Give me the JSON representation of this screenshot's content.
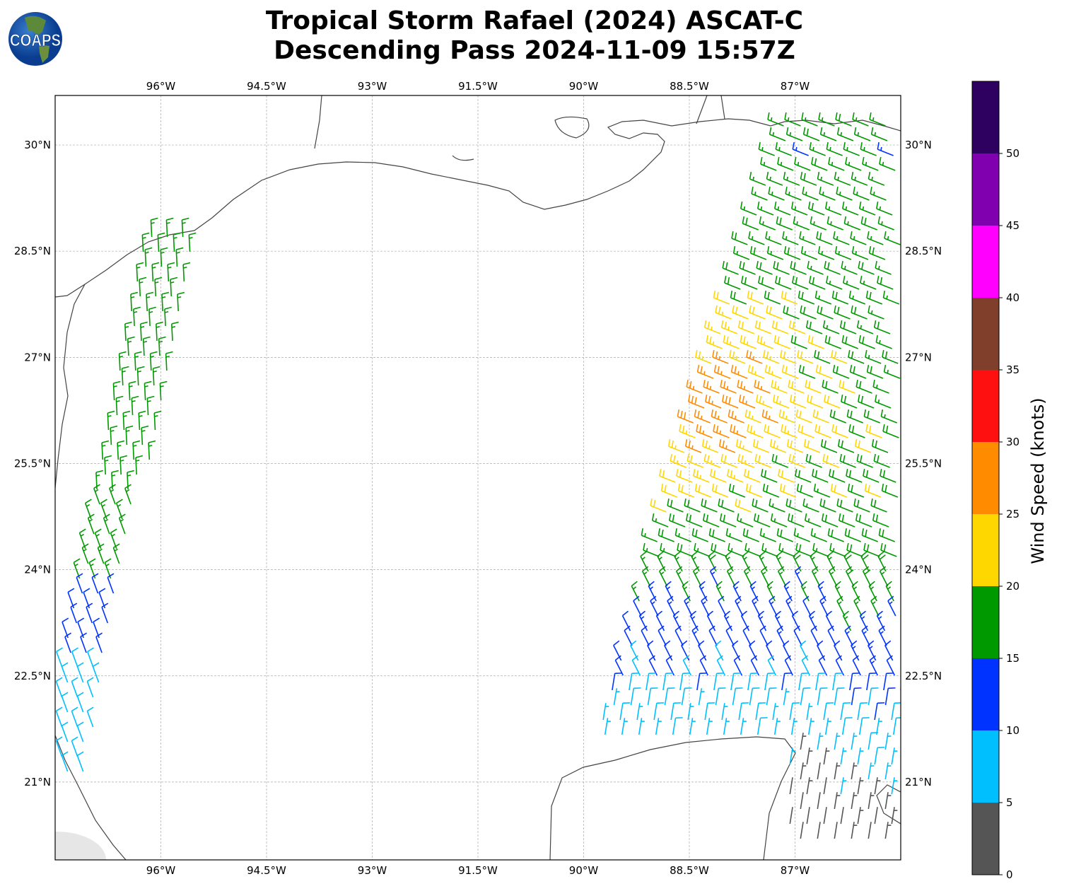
{
  "title_line1": "Tropical Storm Rafael (2024) ASCAT-C",
  "title_line2": "Descending Pass 2024-11-09 15:57Z",
  "logo_text": "COAPS",
  "map": {
    "lon_ticks": [
      "96°W",
      "94.5°W",
      "93°W",
      "91.5°W",
      "90°W",
      "88.5°W",
      "87°W"
    ],
    "lat_ticks": [
      "30°N",
      "28.5°N",
      "27°N",
      "25.5°N",
      "24°N",
      "22.5°N",
      "21°N"
    ],
    "lon_range": [
      -97.5,
      -85.5
    ],
    "lat_range": [
      19.9,
      30.7
    ]
  },
  "colorbar": {
    "label": "Wind Speed (knots)",
    "ticks": [
      "0",
      "5",
      "10",
      "15",
      "20",
      "25",
      "30",
      "35",
      "40",
      "45",
      "50"
    ],
    "bins": [
      {
        "min": 0,
        "max": 5,
        "color": "#555555"
      },
      {
        "min": 5,
        "max": 10,
        "color": "#00bfff"
      },
      {
        "min": 10,
        "max": 15,
        "color": "#0033ff"
      },
      {
        "min": 15,
        "max": 20,
        "color": "#009900"
      },
      {
        "min": 20,
        "max": 25,
        "color": "#ffd700"
      },
      {
        "min": 25,
        "max": 30,
        "color": "#ff8c00"
      },
      {
        "min": 30,
        "max": 35,
        "color": "#ff1010"
      },
      {
        "min": 35,
        "max": 40,
        "color": "#7f3f2a"
      },
      {
        "min": 40,
        "max": 45,
        "color": "#ff00ff"
      },
      {
        "min": 45,
        "max": 50,
        "color": "#8000b0"
      },
      {
        "min": 50,
        "max": 55,
        "color": "#2e0060"
      }
    ]
  }
}
